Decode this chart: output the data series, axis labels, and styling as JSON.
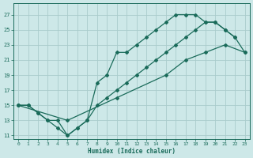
{
  "xlabel": "Humidex (Indice chaleur)",
  "bg_color": "#cde8e8",
  "grid_color": "#aacccc",
  "line_color": "#1a6b5a",
  "xlim": [
    -0.5,
    23.5
  ],
  "ylim": [
    10.5,
    28.5
  ],
  "xticks": [
    0,
    1,
    2,
    3,
    4,
    5,
    6,
    7,
    8,
    9,
    10,
    11,
    12,
    13,
    14,
    15,
    16,
    17,
    18,
    19,
    20,
    21,
    22,
    23
  ],
  "yticks": [
    11,
    13,
    15,
    17,
    19,
    21,
    23,
    25,
    27
  ],
  "line1_x": [
    0,
    1,
    2,
    3,
    4,
    5,
    6,
    7,
    8,
    9,
    10,
    11,
    12,
    13,
    14,
    15,
    16,
    17,
    18,
    19,
    20,
    21,
    22
  ],
  "line1_y": [
    15,
    15,
    14,
    13,
    13,
    11,
    12,
    13,
    18,
    19,
    22,
    22,
    23,
    24,
    25,
    26,
    27,
    27,
    27,
    26,
    26,
    25,
    24
  ],
  "line2_x": [
    0,
    1,
    2,
    3,
    4,
    5,
    6,
    7,
    8,
    9,
    10,
    11,
    12,
    13,
    14,
    15,
    16,
    17,
    18,
    19,
    20,
    21,
    22,
    23
  ],
  "line2_y": [
    15,
    15,
    14,
    13,
    12,
    11,
    12,
    13,
    15,
    16,
    17,
    18,
    19,
    20,
    21,
    22,
    23,
    24,
    25,
    26,
    26,
    25,
    24,
    22
  ],
  "line3_x": [
    0,
    5,
    10,
    15,
    17,
    19,
    21,
    23
  ],
  "line3_y": [
    15,
    13,
    16,
    19,
    21,
    22,
    23,
    22
  ]
}
